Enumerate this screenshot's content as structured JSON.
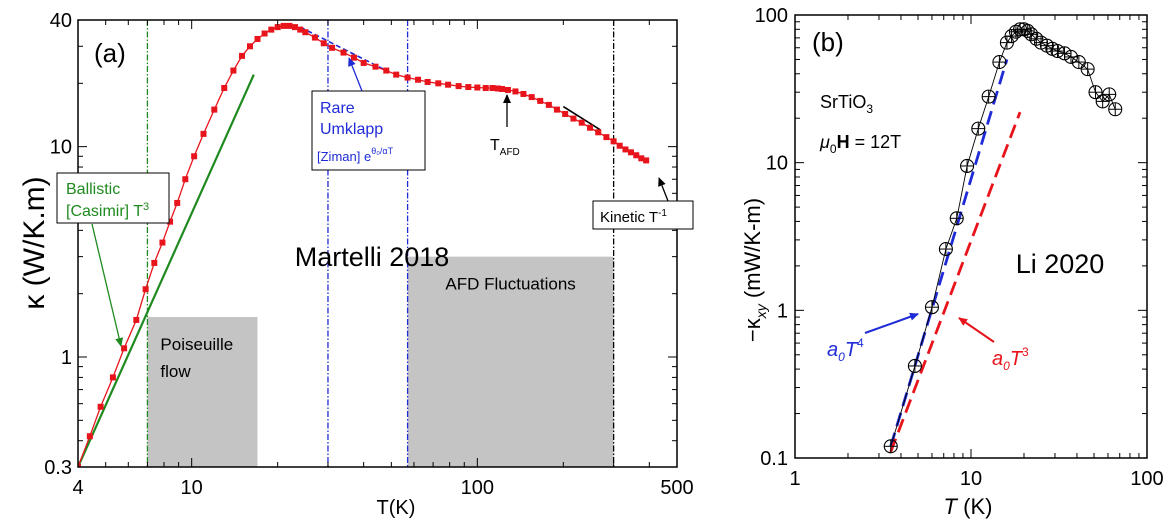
{
  "chart_data": [
    {
      "type": "scatter",
      "panel_label": "(a)",
      "xlabel": "T(K)",
      "ylabel": "κ (W/K.m)",
      "xscale": "log",
      "yscale": "log",
      "xlim": [
        4,
        500
      ],
      "ylim": [
        0.3,
        40
      ],
      "x_ticks": [
        4,
        10,
        100,
        500
      ],
      "y_ticks": [
        0.3,
        1,
        10,
        40
      ],
      "watermark": "Martelli 2018",
      "colors": {
        "data": "#e8141b",
        "ballistic": "#1f8a1f",
        "umklapp": "#1f2bd6",
        "shade": "#c4c4c4"
      },
      "series": [
        {
          "x": [
            4,
            4.4,
            4.8,
            5.3,
            5.8,
            6.4,
            6.9,
            7.4,
            7.9,
            8.4,
            8.9,
            9.5,
            10.2,
            11,
            12,
            13,
            14,
            15,
            16,
            17,
            18,
            19,
            20,
            21,
            22,
            23,
            24,
            25,
            27,
            29,
            31,
            34,
            37,
            40,
            44,
            48,
            52,
            57,
            62,
            67,
            73,
            79,
            86,
            93,
            100,
            107,
            113,
            118,
            122,
            128,
            136,
            145,
            155,
            166,
            178,
            190,
            203,
            217,
            232,
            248,
            265,
            283,
            300,
            315,
            330,
            345,
            360,
            375,
            390
          ],
          "y": [
            0.3,
            0.42,
            0.58,
            0.8,
            1.1,
            1.5,
            2.1,
            2.8,
            3.5,
            4.4,
            5.4,
            7,
            9,
            11.5,
            15,
            19,
            23,
            27,
            30,
            32.5,
            34.5,
            36,
            37,
            37.5,
            37.5,
            37,
            36,
            35,
            33,
            31,
            29.5,
            28,
            26.5,
            25,
            24,
            23,
            22,
            21.3,
            20.8,
            20.3,
            20,
            19.7,
            19.4,
            19.2,
            19.1,
            19,
            19,
            18.9,
            18.8,
            18.6,
            18.3,
            17.8,
            17.2,
            16.5,
            15.8,
            15,
            14.3,
            13.6,
            13,
            12.3,
            11.7,
            11.1,
            10.6,
            10.1,
            9.7,
            9.4,
            9.1,
            8.8,
            8.6
          ]
        },
        {
          "name": "Ballistic [Casimir] T³",
          "type": "line",
          "x": [
            4,
            16.5
          ],
          "y": [
            0.3,
            22
          ]
        },
        {
          "name": "Rare Umklapp [Ziman] exp",
          "type": "line",
          "x": [
            24,
            48
          ],
          "y": [
            37,
            23
          ]
        },
        {
          "name": "Kinetic T⁻¹",
          "type": "line",
          "x": [
            200,
            270
          ],
          "y": [
            15.5,
            12
          ]
        }
      ],
      "vlines": [
        7,
        30,
        57,
        300
      ],
      "shaded": [
        {
          "x": [
            7,
            17
          ],
          "y": [
            0.3,
            1.55
          ],
          "label": [
            "Poiseuille",
            "flow"
          ]
        },
        {
          "x": [
            57,
            300
          ],
          "y": [
            0.3,
            3.0
          ],
          "label": [
            "AFD Fluctuations"
          ]
        }
      ],
      "annotations": {
        "ballistic": {
          "line1": "Ballistic",
          "line2": "[Casimir] T",
          "sup": "3"
        },
        "umklapp": {
          "line1": "Rare",
          "line2": "Umklapp",
          "line3": "[Ziman] e",
          "sup": "θ₀/αT"
        },
        "tafd": {
          "main": "T",
          "sub": "AFD"
        },
        "kinetic": {
          "main": "Kinetic T",
          "sup": "-1"
        }
      }
    },
    {
      "type": "scatter",
      "panel_label": "(b)",
      "xlabel": "T (K)",
      "ylabel": "−κ_xy (mW/K-m)",
      "xscale": "log",
      "yscale": "log",
      "xlim": [
        1,
        100
      ],
      "ylim": [
        0.1,
        100
      ],
      "x_ticks": [
        1,
        10,
        100
      ],
      "y_ticks": [
        0.1,
        1,
        10,
        100
      ],
      "watermark": "Li 2020",
      "material": {
        "main": "SrTiO",
        "sub": "3"
      },
      "field": {
        "mu": "μ",
        "sub": "0",
        "bold": "H",
        "rest": " = 12T"
      },
      "colors": {
        "data": "#000000",
        "fit_t4": "#1f2bd6",
        "fit_t3": "#e8141b"
      },
      "series": [
        {
          "x": [
            3.5,
            4.8,
            6,
            7.2,
            8.3,
            9.5,
            11,
            12.6,
            14.5,
            16,
            17,
            18,
            19,
            20,
            21,
            22,
            23.5,
            25,
            27,
            29,
            31,
            34,
            37,
            41,
            46,
            51,
            56,
            61,
            66
          ],
          "y": [
            0.12,
            0.42,
            1.05,
            2.6,
            4.2,
            9.5,
            17,
            28,
            48,
            65,
            72,
            77,
            80,
            80,
            78,
            74,
            69,
            65,
            62,
            59,
            57,
            55,
            52,
            48,
            43,
            30,
            26,
            29,
            23
          ]
        },
        {
          "name": "a0 T^4",
          "type": "line",
          "x": [
            3.5,
            16
          ],
          "y": [
            0.12,
            50
          ]
        },
        {
          "name": "a0 T^3",
          "type": "line",
          "x": [
            3.5,
            19
          ],
          "y": [
            0.11,
            22
          ]
        }
      ],
      "annotations": {
        "t4": {
          "a": "a",
          "sub": "0",
          "t": "T",
          "sup": "4"
        },
        "t3": {
          "a": "a",
          "sub": "0",
          "t": "T",
          "sup": "3"
        }
      }
    }
  ]
}
